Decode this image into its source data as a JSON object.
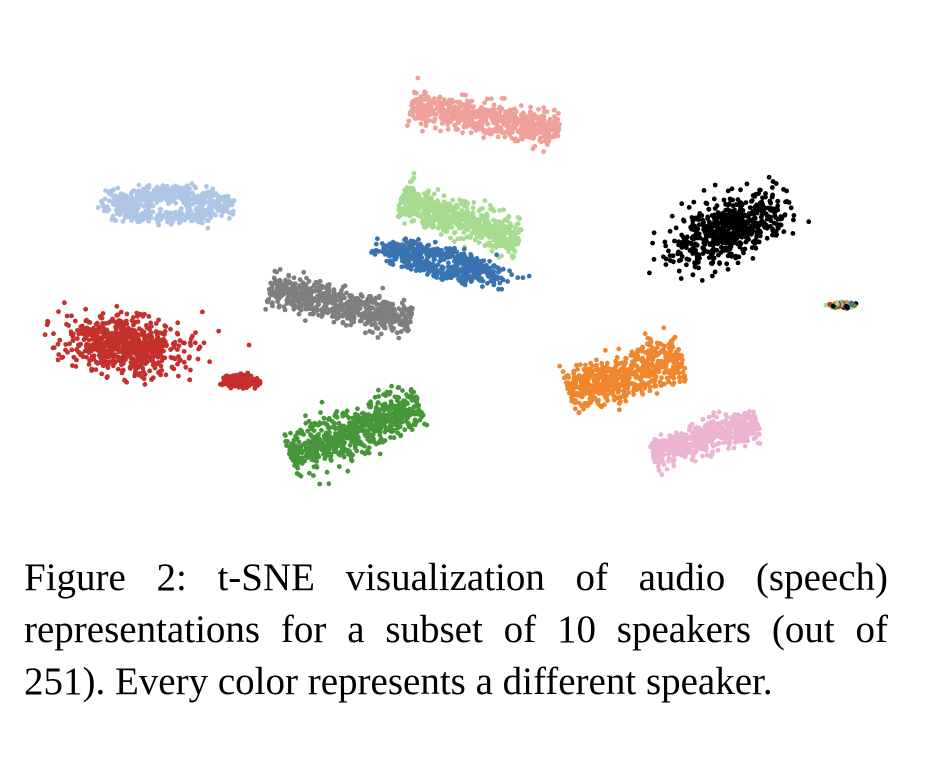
{
  "caption": {
    "label": "Figure 2:",
    "text": "t-SNE visualization of audio (speech) representations for a subset of 10 speakers (out of 251). Every color represents a different speaker."
  },
  "chart_data": {
    "type": "scatter",
    "title": "",
    "xlabel": "",
    "ylabel": "",
    "axes_visible": false,
    "grid": false,
    "legend": "none",
    "series": [
      {
        "color": "#f0a09a",
        "clusters": [
          {
            "center": [
              485,
              118
            ],
            "spread": [
              150,
              28
            ],
            "shape": "band",
            "tilt": 0.18,
            "n": 650
          }
        ]
      },
      {
        "color": "#aec5e6",
        "clusters": [
          {
            "center": [
              170,
              205
            ],
            "spread": [
              115,
              32
            ],
            "shape": "ring",
            "tilt": 0.0,
            "n": 550
          }
        ]
      },
      {
        "color": "#a6db90",
        "clusters": [
          {
            "center": [
              460,
              220
            ],
            "spread": [
              125,
              32
            ],
            "shape": "band",
            "tilt": 0.32,
            "n": 650
          }
        ]
      },
      {
        "color": "#000000",
        "clusters": [
          {
            "center": [
              730,
              228
            ],
            "spread": [
              95,
              42
            ],
            "shape": "blob",
            "tilt": -0.38,
            "n": 620
          }
        ]
      },
      {
        "color": "#3a74b0",
        "clusters": [
          {
            "center": [
              440,
              262
            ],
            "spread": [
              115,
              26
            ],
            "shape": "ring",
            "tilt": 0.22,
            "n": 560
          }
        ]
      },
      {
        "color": "#7f7f7f",
        "clusters": [
          {
            "center": [
              340,
              305
            ],
            "spread": [
              145,
              30
            ],
            "shape": "band",
            "tilt": 0.22,
            "n": 650
          }
        ]
      },
      {
        "color": "#c4302c",
        "clusters": [
          {
            "center": [
              125,
              345
            ],
            "spread": [
              90,
              42
            ],
            "shape": "blob",
            "tilt": 0.1,
            "n": 700
          },
          {
            "center": [
              240,
              381
            ],
            "spread": [
              34,
              12
            ],
            "shape": "ring",
            "tilt": 0.0,
            "n": 150
          }
        ]
      },
      {
        "color": "#f0862d",
        "clusters": [
          {
            "center": [
              625,
              375
            ],
            "spread": [
              120,
              40
            ],
            "shape": "band",
            "tilt": -0.32,
            "n": 650
          }
        ]
      },
      {
        "color": "#ecb3d2",
        "clusters": [
          {
            "center": [
              705,
              438
            ],
            "spread": [
              110,
              28
            ],
            "shape": "band",
            "tilt": -0.28,
            "n": 560
          }
        ]
      },
      {
        "color": "#47973a",
        "clusters": [
          {
            "center": [
              355,
              430
            ],
            "spread": [
              140,
              40
            ],
            "shape": "band",
            "tilt": -0.38,
            "n": 720
          }
        ]
      },
      {
        "color": "mixed",
        "clusters": [
          {
            "center": [
              843,
              305
            ],
            "spread": [
              24,
              6
            ],
            "shape": "ring",
            "tilt": 0.0,
            "n": 70
          }
        ]
      }
    ]
  }
}
